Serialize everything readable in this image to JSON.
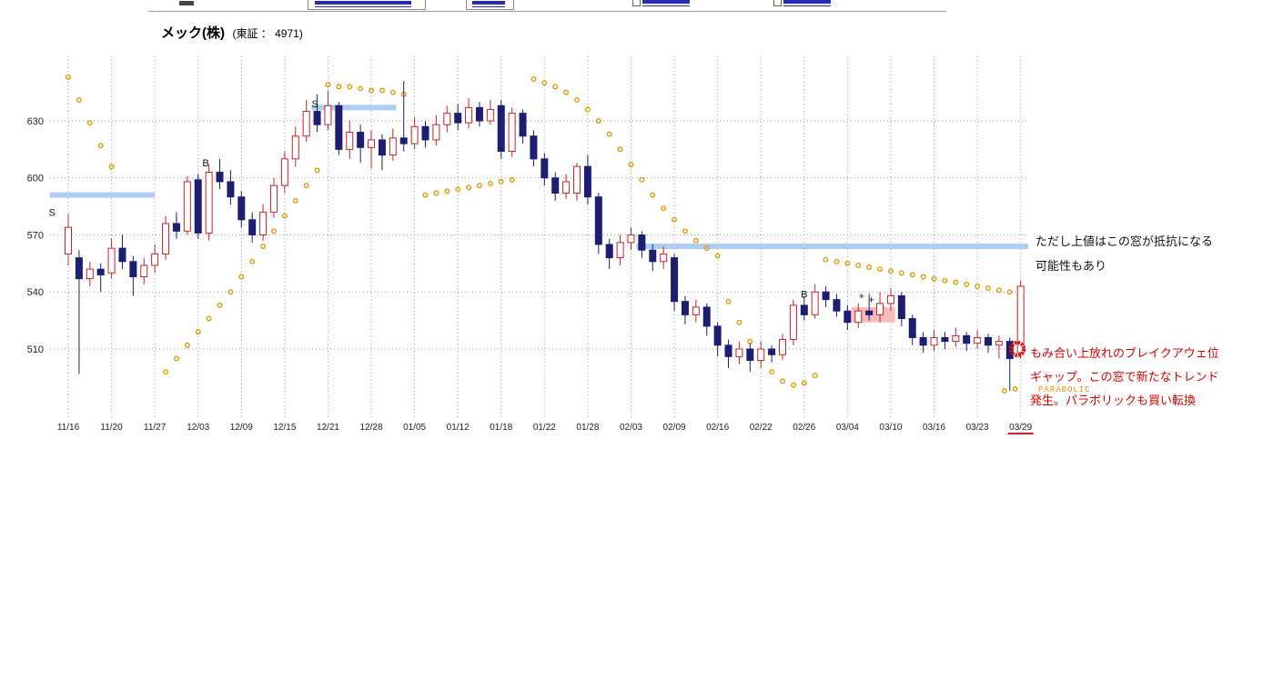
{
  "header": {
    "stock_name": "メック(株)",
    "stock_info": "(東証 ： 4971)"
  },
  "notes": {
    "resistance_1": "ただし上値はこの窓が抵抗になる",
    "resistance_2": "可能性もあり",
    "breakout_1": "もみ合い上放れのブレイクアウェ位",
    "breakout_2": "ギャップ。この窓で新たなトレンド",
    "breakout_3": "発生。パラボリックも買い転換",
    "parabolic": "PARABOLIC"
  },
  "chart_data": {
    "type": "candlestick",
    "title": "メック(株)(東証 ： 4971)",
    "y_ticks": [
      630,
      600,
      570,
      540,
      510
    ],
    "ylim": [
      471,
      665
    ],
    "x_ticks": [
      "11/16",
      "11/20",
      "11/27",
      "12/03",
      "12/09",
      "12/15",
      "12/21",
      "12/28",
      "01/05",
      "01/12",
      "01/18",
      "01/22",
      "01/28",
      "02/03",
      "02/09",
      "02/16",
      "02/22",
      "02/26",
      "03/04",
      "03/10",
      "03/16",
      "03/23",
      "03/29"
    ],
    "x_tick_step": 4,
    "grid": true,
    "candles_ohlc": [
      [
        560,
        581,
        554,
        574
      ],
      [
        558,
        562,
        497,
        547
      ],
      [
        547,
        556,
        543,
        552
      ],
      [
        552,
        555,
        540,
        549
      ],
      [
        550,
        568,
        547,
        563
      ],
      [
        563,
        570,
        552,
        556
      ],
      [
        556,
        559,
        538,
        548
      ],
      [
        548,
        558,
        544,
        554
      ],
      [
        554,
        565,
        550,
        560
      ],
      [
        560,
        580,
        557,
        576
      ],
      [
        576,
        582,
        568,
        572
      ],
      [
        572,
        601,
        570,
        598
      ],
      [
        599,
        602,
        568,
        571
      ],
      [
        571,
        607,
        567,
        603
      ],
      [
        603,
        610,
        594,
        598
      ],
      [
        598,
        604,
        586,
        590
      ],
      [
        590,
        593,
        574,
        578
      ],
      [
        578,
        582,
        566,
        570
      ],
      [
        570,
        586,
        567,
        582
      ],
      [
        582,
        600,
        579,
        596
      ],
      [
        596,
        614,
        592,
        610
      ],
      [
        610,
        627,
        606,
        622
      ],
      [
        622,
        641,
        619,
        635
      ],
      [
        635,
        644,
        624,
        628
      ],
      [
        628,
        646,
        625,
        638
      ],
      [
        638,
        640,
        612,
        615
      ],
      [
        615,
        630,
        610,
        624
      ],
      [
        624,
        628,
        608,
        616
      ],
      [
        616,
        625,
        605,
        620
      ],
      [
        620,
        623,
        604,
        612
      ],
      [
        612,
        626,
        609,
        621
      ],
      [
        621,
        651,
        614,
        618
      ],
      [
        618,
        632,
        615,
        627
      ],
      [
        627,
        630,
        616,
        620
      ],
      [
        620,
        633,
        617,
        628
      ],
      [
        628,
        638,
        624,
        634
      ],
      [
        634,
        639,
        625,
        629
      ],
      [
        629,
        642,
        626,
        637
      ],
      [
        637,
        640,
        627,
        630
      ],
      [
        630,
        641,
        628,
        636
      ],
      [
        638,
        641,
        610,
        614
      ],
      [
        614,
        637,
        611,
        634
      ],
      [
        634,
        636,
        618,
        622
      ],
      [
        622,
        625,
        606,
        610
      ],
      [
        610,
        613,
        596,
        600
      ],
      [
        600,
        603,
        588,
        592
      ],
      [
        592,
        602,
        589,
        598
      ],
      [
        592,
        608,
        588,
        606
      ],
      [
        606,
        612,
        586,
        590
      ],
      [
        590,
        592,
        560,
        565
      ],
      [
        565,
        568,
        552,
        558
      ],
      [
        558,
        570,
        554,
        566
      ],
      [
        566,
        574,
        562,
        570
      ],
      [
        570,
        572,
        558,
        562
      ],
      [
        562,
        565,
        551,
        556
      ],
      [
        556,
        564,
        552,
        560
      ],
      [
        558,
        560,
        530,
        535
      ],
      [
        535,
        538,
        523,
        528
      ],
      [
        528,
        536,
        524,
        532
      ],
      [
        532,
        534,
        517,
        522
      ],
      [
        522,
        524,
        506,
        512
      ],
      [
        512,
        515,
        500,
        506
      ],
      [
        506,
        514,
        502,
        510
      ],
      [
        510,
        513,
        498,
        504
      ],
      [
        504,
        514,
        500,
        510
      ],
      [
        510,
        512,
        503,
        507
      ],
      [
        507,
        518,
        504,
        515
      ],
      [
        515,
        536,
        512,
        533
      ],
      [
        533,
        538,
        525,
        528
      ],
      [
        528,
        544,
        526,
        540
      ],
      [
        540,
        543,
        532,
        536
      ],
      [
        536,
        539,
        527,
        530
      ],
      [
        530,
        533,
        520,
        524
      ],
      [
        524,
        534,
        521,
        530
      ],
      [
        530,
        539,
        525,
        528
      ],
      [
        528,
        540,
        524,
        534
      ],
      [
        534,
        542,
        530,
        538
      ],
      [
        538,
        540,
        522,
        526
      ],
      [
        526,
        528,
        512,
        516
      ],
      [
        516,
        519,
        508,
        512
      ],
      [
        512,
        520,
        509,
        516
      ],
      [
        516,
        519,
        510,
        514
      ],
      [
        514,
        521,
        511,
        517
      ],
      [
        517,
        519,
        509,
        513
      ],
      [
        513,
        520,
        510,
        516
      ],
      [
        516,
        518,
        508,
        512
      ],
      [
        512,
        517,
        505,
        514
      ],
      [
        514,
        516,
        488,
        505
      ],
      [
        508,
        546,
        505,
        543
      ]
    ],
    "parabolic_sar": [
      [
        0,
        653
      ],
      [
        1,
        641
      ],
      [
        2,
        629
      ],
      [
        3,
        617
      ],
      [
        4,
        606
      ],
      [
        9,
        498
      ],
      [
        10,
        505
      ],
      [
        11,
        512
      ],
      [
        12,
        519
      ],
      [
        13,
        526
      ],
      [
        14,
        533
      ],
      [
        15,
        540
      ],
      [
        16,
        548
      ],
      [
        17,
        556
      ],
      [
        18,
        564
      ],
      [
        19,
        572
      ],
      [
        20,
        580
      ],
      [
        21,
        588
      ],
      [
        22,
        596
      ],
      [
        23,
        604
      ],
      [
        24,
        649
      ],
      [
        25,
        648
      ],
      [
        26,
        648
      ],
      [
        27,
        647
      ],
      [
        28,
        646
      ],
      [
        29,
        646
      ],
      [
        30,
        645
      ],
      [
        31,
        644
      ],
      [
        33,
        591
      ],
      [
        34,
        592
      ],
      [
        35,
        593
      ],
      [
        36,
        594
      ],
      [
        37,
        595
      ],
      [
        38,
        596
      ],
      [
        39,
        597
      ],
      [
        40,
        598
      ],
      [
        41,
        599
      ],
      [
        43,
        652
      ],
      [
        44,
        650
      ],
      [
        45,
        648
      ],
      [
        46,
        645
      ],
      [
        47,
        641
      ],
      [
        48,
        636
      ],
      [
        49,
        630
      ],
      [
        50,
        623
      ],
      [
        51,
        615
      ],
      [
        52,
        607
      ],
      [
        53,
        599
      ],
      [
        54,
        591
      ],
      [
        55,
        584
      ],
      [
        56,
        578
      ],
      [
        57,
        572
      ],
      [
        58,
        567
      ],
      [
        59,
        563
      ],
      [
        60,
        559
      ],
      [
        61,
        535
      ],
      [
        62,
        524
      ],
      [
        63,
        514
      ],
      [
        64,
        505
      ],
      [
        65,
        498
      ],
      [
        66,
        493
      ],
      [
        67,
        491
      ],
      [
        68,
        492
      ],
      [
        69,
        496
      ],
      [
        70,
        557
      ],
      [
        71,
        556
      ],
      [
        72,
        555
      ],
      [
        73,
        554
      ],
      [
        74,
        553
      ],
      [
        75,
        552
      ],
      [
        76,
        551
      ],
      [
        77,
        550
      ],
      [
        78,
        549
      ],
      [
        79,
        548
      ],
      [
        80,
        547
      ],
      [
        81,
        546
      ],
      [
        82,
        545
      ],
      [
        83,
        544
      ],
      [
        84,
        543
      ],
      [
        85,
        542
      ],
      [
        86,
        541
      ],
      [
        87,
        540
      ],
      [
        88,
        539
      ],
      [
        86.5,
        488
      ],
      [
        87.5,
        489
      ]
    ],
    "window_bands": [
      {
        "from": -1.7,
        "to": 8.0,
        "price": 591
      },
      {
        "from": 22.5,
        "to": 30.3,
        "price": 637
      },
      {
        "from": 52.5,
        "to": 88.7,
        "price": 564
      }
    ],
    "gap_box": {
      "from": 72.4,
      "to": 76.4,
      "top": 532,
      "bottom": 524
    },
    "signal_markers": [
      {
        "label": "S",
        "index": -1.5,
        "price": 582
      },
      {
        "label": "B",
        "index": 12.7,
        "price": 608
      },
      {
        "label": "S",
        "index": 22.8,
        "price": 639
      },
      {
        "label": "B",
        "index": 68.0,
        "price": 539
      },
      {
        "label": "+",
        "index": 73.3,
        "price": 538
      },
      {
        "label": "+",
        "index": 74.2,
        "price": 536
      }
    ],
    "breakout_circle": {
      "index": 87.7,
      "price": 510
    },
    "colors": {
      "bull": "#cc2222",
      "bear": "#1d1d72",
      "sar": "#e09a00",
      "band": "#aecdf0",
      "gap_box": "#f7bdbd",
      "note_red": "#dd0000",
      "grid": "#9b9b9b",
      "axis_text": "#222222"
    }
  }
}
